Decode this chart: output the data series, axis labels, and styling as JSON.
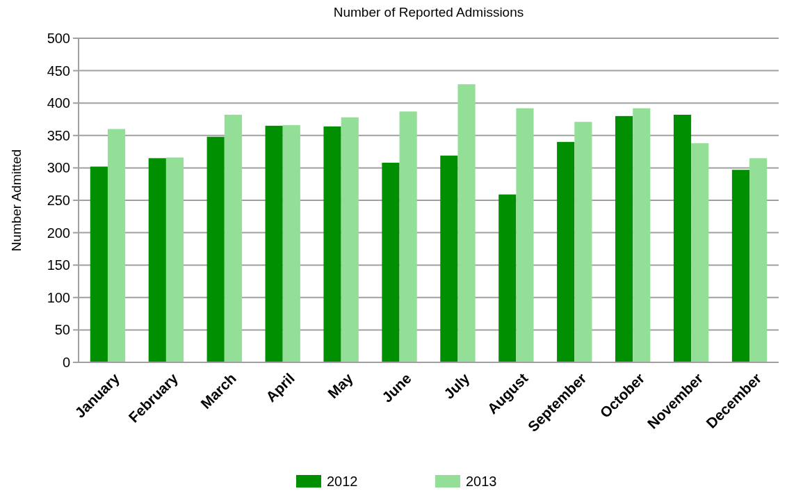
{
  "chart_data": {
    "type": "bar",
    "title": "Number of Reported Admissions",
    "ylabel": "Number Admitted",
    "categories": [
      "January",
      "February",
      "March",
      "April",
      "May",
      "June",
      "July",
      "August",
      "September",
      "October",
      "November",
      "December"
    ],
    "series": [
      {
        "name": "2012",
        "color": "#008f00",
        "values": [
          302,
          315,
          348,
          365,
          364,
          308,
          319,
          259,
          340,
          380,
          382,
          297
        ]
      },
      {
        "name": "2013",
        "color": "#93df98",
        "values": [
          360,
          316,
          382,
          366,
          378,
          387,
          429,
          392,
          371,
          392,
          338,
          315
        ]
      }
    ],
    "ylim": [
      0,
      500
    ],
    "yticks": [
      0,
      50,
      100,
      150,
      200,
      250,
      300,
      350,
      400,
      450,
      500
    ],
    "grid": "y",
    "legend": "bottom"
  }
}
